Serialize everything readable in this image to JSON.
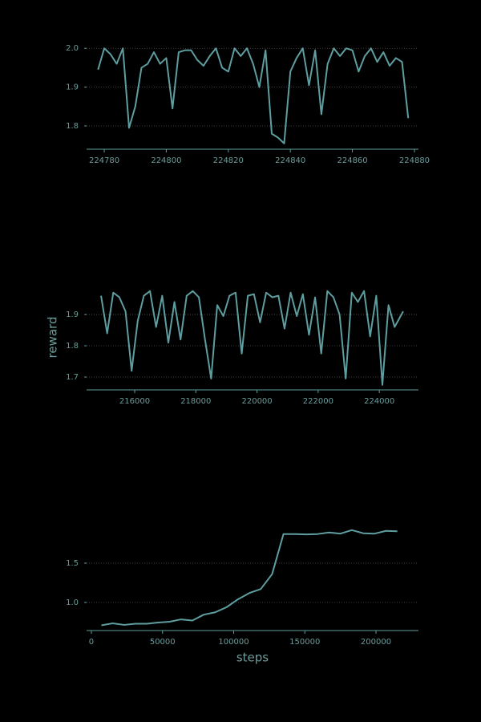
{
  "chart_data": [
    {
      "type": "line",
      "color": "#5f9ea0",
      "grid": true,
      "x": [
        224778,
        224780,
        224782,
        224784,
        224786,
        224788,
        224790,
        224792,
        224794,
        224796,
        224798,
        224800,
        224802,
        224804,
        224806,
        224808,
        224810,
        224812,
        224814,
        224816,
        224818,
        224820,
        224822,
        224824,
        224826,
        224828,
        224830,
        224832,
        224834,
        224836,
        224838,
        224840,
        224842,
        224844,
        224846,
        224848,
        224850,
        224852,
        224854,
        224856,
        224858,
        224860,
        224862,
        224864,
        224866,
        224868,
        224870,
        224872,
        224874,
        224876,
        224878
      ],
      "values": [
        1.945,
        2.0,
        1.985,
        1.96,
        2.0,
        1.795,
        1.85,
        1.95,
        1.96,
        1.99,
        1.96,
        1.975,
        1.845,
        1.99,
        1.995,
        1.995,
        1.97,
        1.955,
        1.98,
        2.0,
        1.95,
        1.94,
        2.0,
        1.98,
        2.0,
        1.96,
        1.9,
        1.995,
        1.78,
        1.77,
        1.755,
        1.94,
        1.975,
        2.0,
        1.905,
        1.995,
        1.83,
        1.96,
        2.0,
        1.98,
        2.0,
        1.995,
        1.94,
        1.98,
        2.0,
        1.965,
        1.99,
        1.955,
        1.975,
        1.965,
        1.82
      ],
      "xlim": [
        224774.3,
        224881.3
      ],
      "xticks": [
        224780,
        224800,
        224820,
        224840,
        224860,
        224880
      ],
      "ylim": [
        1.74,
        2.017
      ],
      "yticks": [
        {
          "value": 1.8,
          "label": "1.8"
        },
        {
          "value": 1.9,
          "label": "1.9"
        },
        {
          "value": 2.0,
          "label": "2.0"
        }
      ]
    },
    {
      "type": "line",
      "color": "#5f9ea0",
      "grid": true,
      "ylabel": "reward",
      "x": [
        214900,
        215100,
        215300,
        215500,
        215700,
        215900,
        216100,
        216300,
        216500,
        216700,
        216900,
        217100,
        217300,
        217500,
        217700,
        217900,
        218100,
        218300,
        218500,
        218700,
        218900,
        219100,
        219300,
        219500,
        219700,
        219900,
        220100,
        220300,
        220500,
        220700,
        220900,
        221100,
        221300,
        221500,
        221700,
        221900,
        222100,
        222300,
        222500,
        222700,
        222900,
        223100,
        223300,
        223500,
        223700,
        223900,
        224100,
        224300,
        224500,
        224780
      ],
      "values": [
        1.96,
        1.84,
        1.97,
        1.955,
        1.91,
        1.72,
        1.88,
        1.96,
        1.975,
        1.86,
        1.96,
        1.81,
        1.94,
        1.82,
        1.96,
        1.975,
        1.955,
        1.82,
        1.695,
        1.93,
        1.895,
        1.96,
        1.97,
        1.775,
        1.96,
        1.965,
        1.875,
        1.97,
        1.955,
        1.96,
        1.855,
        1.97,
        1.895,
        1.965,
        1.835,
        1.955,
        1.775,
        1.975,
        1.955,
        1.9,
        1.695,
        1.97,
        1.94,
        1.975,
        1.83,
        1.96,
        1.675,
        1.93,
        1.86,
        1.91
      ],
      "xlim": [
        214427,
        225280
      ],
      "xticks": [
        216000,
        218000,
        220000,
        222000,
        224000
      ],
      "ylim": [
        1.659,
        1.995
      ],
      "yticks": [
        1.7,
        1.8,
        1.9
      ]
    },
    {
      "type": "line",
      "color": "#5f9ea0",
      "grid": true,
      "xlabel": "steps",
      "x": [
        7000,
        15000,
        23000,
        31000,
        39000,
        47000,
        55000,
        63000,
        71000,
        79000,
        87000,
        95000,
        103000,
        111000,
        119000,
        127000,
        135000,
        143000,
        151000,
        159000,
        167000,
        175000,
        183000,
        191000,
        199000,
        207000,
        215000
      ],
      "values": [
        0.71,
        0.735,
        0.715,
        0.73,
        0.73,
        0.745,
        0.755,
        0.785,
        0.77,
        0.845,
        0.875,
        0.94,
        1.04,
        1.12,
        1.17,
        1.36,
        1.87,
        1.87,
        1.865,
        1.87,
        1.89,
        1.875,
        1.92,
        1.88,
        1.875,
        1.91,
        1.905
      ],
      "xlim": [
        -3380,
        229860
      ],
      "xticks": [
        0,
        50000,
        100000,
        150000,
        200000
      ],
      "ylim": [
        0.643,
        2.03
      ],
      "yticks": [
        {
          "value": 1.0,
          "label": "1.0"
        },
        {
          "value": 1.5,
          "label": "1.5"
        }
      ]
    }
  ]
}
